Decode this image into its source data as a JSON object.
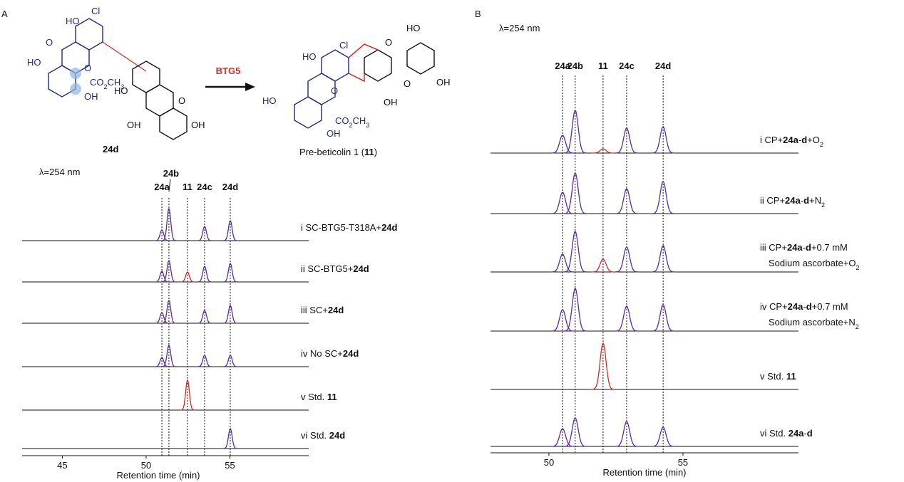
{
  "scheme": {
    "reactant_atoms": [
      "HO",
      "Cl",
      "O",
      "O",
      "HO",
      "CO2CH3",
      "OH",
      "HO",
      "O",
      "OH",
      "OH"
    ],
    "reactant_label": "24d",
    "enzyme": "BTG5",
    "product_atoms": [
      "HO",
      "Cl",
      "O",
      "HO",
      "OH",
      "O",
      "OH",
      "HO",
      "O",
      "CO2CH3",
      "OH"
    ],
    "product_label": [
      {
        "text": "Pre-beticolin 1 ("
      },
      {
        "text": "11",
        "style": "bold"
      },
      {
        "text": ")"
      }
    ]
  },
  "chart_data": [
    {
      "type": "chromatogram",
      "panel": "A",
      "wavelength_label": "λ=254 nm",
      "xlabel": "Retention time (min)",
      "xlim": [
        42.6,
        59.7
      ],
      "xticks": [
        45,
        50,
        55
      ],
      "compounds": [
        "24a",
        "24b",
        "11",
        "24c",
        "24d"
      ],
      "retention_times": [
        50.94,
        51.36,
        52.47,
        53.49,
        55.02
      ],
      "peak_colors": [
        "#5a2ca0",
        "#5a2ca0",
        "#d42a2a",
        "#5a2ca0",
        "#5a2ca0"
      ],
      "traces": [
        {
          "label": [
            [
              {
                "text": "i SC-BTG5-T318A+"
              },
              {
                "text": "24d",
                "style": "bold"
              }
            ]
          ],
          "peak_heights": [
            15,
            45,
            0,
            20,
            28
          ]
        },
        {
          "label": [
            [
              {
                "text": "ii SC-BTG5+"
              },
              {
                "text": "24d",
                "style": "bold"
              }
            ]
          ],
          "peak_heights": [
            15,
            30,
            14,
            22,
            26
          ]
        },
        {
          "label": [
            [
              {
                "text": "iii SC+"
              },
              {
                "text": "24d",
                "style": "bold"
              }
            ]
          ],
          "peak_heights": [
            15,
            32,
            0,
            18,
            25
          ]
        },
        {
          "label": [
            [
              {
                "text": "iv No SC+"
              },
              {
                "text": "24d",
                "style": "bold"
              }
            ]
          ],
          "peak_heights": [
            13,
            30,
            0,
            16,
            16
          ]
        },
        {
          "label": [
            [
              {
                "text": "v Std. "
              },
              {
                "text": "11",
                "style": "bold"
              }
            ]
          ],
          "peak_heights": [
            0,
            0,
            42,
            0,
            0
          ]
        },
        {
          "label": [
            [
              {
                "text": "vi Std. "
              },
              {
                "text": "24d",
                "style": "bold"
              }
            ]
          ],
          "peak_heights": [
            0,
            0,
            0,
            0,
            28
          ]
        }
      ]
    },
    {
      "type": "chromatogram",
      "panel": "B",
      "wavelength_label": "λ=254 nm",
      "xlabel": "Retention time (min)",
      "xlim": [
        47.82,
        59.31
      ],
      "xticks": [
        50,
        55
      ],
      "compounds": [
        "24a",
        "24b",
        "11",
        "24c",
        "24d"
      ],
      "retention_times": [
        50.51,
        50.98,
        52.02,
        52.9,
        54.26
      ],
      "peak_colors": [
        "#5a2ca0",
        "#5a2ca0",
        "#d42a2a",
        "#5a2ca0",
        "#5a2ca0"
      ],
      "traces": [
        {
          "label": [
            [
              {
                "text": "i CP+"
              },
              {
                "text": "24a",
                "style": "bold"
              },
              {
                "text": "-"
              },
              {
                "text": "d",
                "style": "bold"
              },
              {
                "text": "+O"
              },
              {
                "text": "2",
                "style": "sub"
              }
            ]
          ],
          "peak_heights": [
            25,
            60,
            6,
            35,
            37
          ]
        },
        {
          "label": [
            [
              {
                "text": "ii CP+"
              },
              {
                "text": "24a",
                "style": "bold"
              },
              {
                "text": "-"
              },
              {
                "text": "d",
                "style": "bold"
              },
              {
                "text": "+N"
              },
              {
                "text": "2",
                "style": "sub"
              }
            ]
          ],
          "peak_heights": [
            30,
            57,
            0,
            35,
            45
          ]
        },
        {
          "label": [
            [
              {
                "text": "iii CP+"
              },
              {
                "text": "24a",
                "style": "bold"
              },
              {
                "text": "-"
              },
              {
                "text": "d",
                "style": "bold"
              },
              {
                "text": "+0.7 mM"
              }
            ],
            [
              {
                "text": "Sodium ascorbate+O"
              },
              {
                "text": "2",
                "style": "sub"
              }
            ]
          ],
          "peak_heights": [
            25,
            57,
            18,
            35,
            37
          ]
        },
        {
          "label": [
            [
              {
                "text": "iv CP+"
              },
              {
                "text": "24a",
                "style": "bold"
              },
              {
                "text": "-"
              },
              {
                "text": "d",
                "style": "bold"
              },
              {
                "text": "+0.7 mM"
              }
            ],
            [
              {
                "text": "Sodium ascorbate+N"
              },
              {
                "text": "2",
                "style": "sub"
              }
            ]
          ],
          "peak_heights": [
            30,
            60,
            0,
            35,
            37
          ]
        },
        {
          "label": [
            [
              {
                "text": "v Std. "
              },
              {
                "text": "11",
                "style": "bold"
              }
            ]
          ],
          "peak_heights": [
            0,
            0,
            65,
            0,
            0
          ]
        },
        {
          "label": [
            [
              {
                "text": "vi Std. "
              },
              {
                "text": "24a",
                "style": "bold"
              },
              {
                "text": "-"
              },
              {
                "text": "d",
                "style": "bold"
              }
            ]
          ],
          "peak_heights": [
            25,
            40,
            0,
            35,
            27
          ]
        }
      ]
    }
  ]
}
